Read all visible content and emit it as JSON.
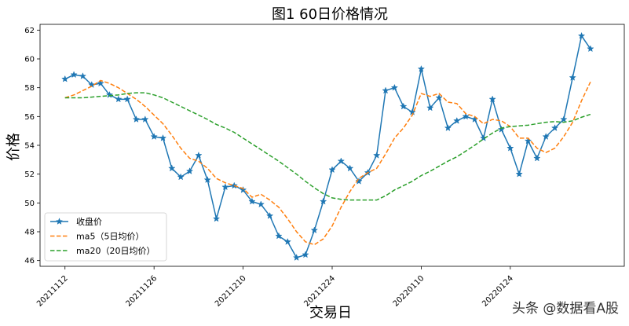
{
  "chart_data": {
    "type": "line",
    "title": "图1  60日价格情况",
    "xlabel": "交易日",
    "ylabel": "价格",
    "ylim": [
      45.6,
      62.4
    ],
    "yticks": [
      46,
      48,
      50,
      52,
      54,
      56,
      58,
      60,
      62
    ],
    "xticks": [
      {
        "index": 0,
        "label": "20211112"
      },
      {
        "index": 10,
        "label": "20211126"
      },
      {
        "index": 20,
        "label": "20211210"
      },
      {
        "index": 30,
        "label": "20211224"
      },
      {
        "index": 40,
        "label": "20220110"
      },
      {
        "index": 50,
        "label": "20220124"
      }
    ],
    "xlim": [
      -2.8,
      62.8
    ],
    "legend": "lower-left",
    "grid": false,
    "series": [
      {
        "name": "收盘价",
        "style": "solid",
        "marker": "star",
        "color": "#1f77b4",
        "values": [
          58.6,
          58.9,
          58.8,
          58.2,
          58.3,
          57.5,
          57.2,
          57.2,
          55.8,
          55.8,
          54.6,
          54.5,
          52.4,
          51.8,
          52.2,
          53.3,
          51.6,
          48.9,
          51.1,
          51.2,
          50.9,
          50.1,
          49.9,
          49.1,
          47.7,
          47.3,
          46.2,
          46.4,
          48.1,
          50.1,
          52.3,
          52.9,
          52.4,
          51.5,
          52.1,
          53.3,
          57.8,
          58.0,
          56.7,
          56.3,
          59.3,
          56.6,
          57.3,
          55.2,
          55.7,
          56.0,
          55.8,
          54.5,
          57.2,
          55.1,
          53.8,
          52.0,
          54.3,
          53.1,
          54.6,
          55.2,
          55.8,
          58.7,
          61.6,
          60.7
        ]
      },
      {
        "name": "ma5（5日均价）",
        "style": "dashed",
        "color": "#ff7f0e",
        "values": [
          57.3,
          57.5,
          57.8,
          58.1,
          58.5,
          58.3,
          58.0,
          57.6,
          57.2,
          56.7,
          56.1,
          55.5,
          54.7,
          53.8,
          53.1,
          52.9,
          52.4,
          51.7,
          51.4,
          51.2,
          51.0,
          50.4,
          50.6,
          50.2,
          49.7,
          48.9,
          48.0,
          47.3,
          47.1,
          47.5,
          48.4,
          49.7,
          50.8,
          51.7,
          52.1,
          52.4,
          53.4,
          54.5,
          55.2,
          56.1,
          57.6,
          57.4,
          57.6,
          57.0,
          56.9,
          56.2,
          56.0,
          55.5,
          55.8,
          55.7,
          55.3,
          54.5,
          54.5,
          53.8,
          53.5,
          53.8,
          54.6,
          55.6,
          57.1,
          58.4
        ]
      },
      {
        "name": "ma20（20日均价）",
        "style": "dashed",
        "color": "#2ca02c",
        "values": [
          57.3,
          57.3,
          57.3,
          57.35,
          57.4,
          57.45,
          57.5,
          57.6,
          57.65,
          57.65,
          57.5,
          57.3,
          57.0,
          56.7,
          56.4,
          56.1,
          55.8,
          55.45,
          55.2,
          54.9,
          54.5,
          54.1,
          53.7,
          53.3,
          52.9,
          52.45,
          52.0,
          51.5,
          51.05,
          50.65,
          50.35,
          50.25,
          50.2,
          50.2,
          50.2,
          50.2,
          50.5,
          50.9,
          51.2,
          51.5,
          51.9,
          52.2,
          52.55,
          52.9,
          53.2,
          53.6,
          54.0,
          54.45,
          54.85,
          55.2,
          55.3,
          55.35,
          55.4,
          55.5,
          55.6,
          55.65,
          55.6,
          55.7,
          55.95,
          56.15
        ]
      }
    ]
  },
  "watermark": "头条 @数据看A股"
}
